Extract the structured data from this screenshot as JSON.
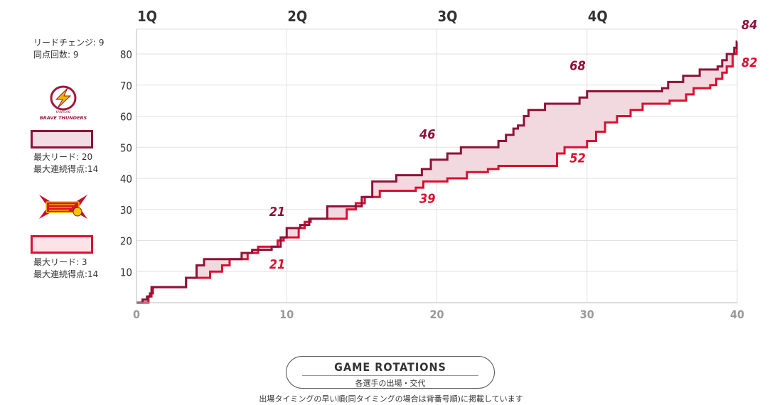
{
  "chart_data": {
    "type": "line",
    "title": "",
    "xlabel": "",
    "ylabel": "",
    "xlim": [
      0,
      40
    ],
    "ylim": [
      0,
      88
    ],
    "x_ticks": [
      "0",
      "10",
      "20",
      "30",
      "40"
    ],
    "y_ticks": [
      "10",
      "20",
      "30",
      "40",
      "50",
      "60",
      "70",
      "80"
    ],
    "quarters": [
      {
        "label": "1Q",
        "x": 0
      },
      {
        "label": "2Q",
        "x": 10
      },
      {
        "label": "3Q",
        "x": 20
      },
      {
        "label": "4Q",
        "x": 30
      }
    ],
    "grid": true,
    "series": [
      {
        "team": "thunders",
        "color": "#8e1239",
        "quarter_scores": [
          "21",
          "46",
          "68",
          "84"
        ],
        "steps": [
          [
            0,
            0
          ],
          [
            0.4,
            1
          ],
          [
            0.7,
            2
          ],
          [
            0.9,
            3
          ],
          [
            1.0,
            5
          ],
          [
            3.3,
            8
          ],
          [
            4.0,
            12
          ],
          [
            4.5,
            14
          ],
          [
            7.0,
            16
          ],
          [
            7.7,
            17
          ],
          [
            9.0,
            18
          ],
          [
            9.6,
            21
          ],
          [
            10.0,
            24
          ],
          [
            10.9,
            25
          ],
          [
            11.5,
            27
          ],
          [
            12.7,
            31
          ],
          [
            15.0,
            34
          ],
          [
            15.7,
            39
          ],
          [
            17.3,
            41
          ],
          [
            19.0,
            43
          ],
          [
            19.6,
            46
          ],
          [
            20.7,
            48
          ],
          [
            21.6,
            50
          ],
          [
            24.1,
            52
          ],
          [
            24.6,
            54
          ],
          [
            25.1,
            56
          ],
          [
            25.4,
            57
          ],
          [
            25.8,
            60
          ],
          [
            26.1,
            62
          ],
          [
            27.2,
            64
          ],
          [
            29.5,
            66
          ],
          [
            30.0,
            68
          ],
          [
            35.0,
            69
          ],
          [
            35.4,
            71
          ],
          [
            36.4,
            73
          ],
          [
            37.5,
            75
          ],
          [
            38.7,
            76
          ],
          [
            39.0,
            78
          ],
          [
            39.3,
            80
          ],
          [
            39.8,
            82
          ],
          [
            39.96,
            84
          ]
        ]
      },
      {
        "team": "brex",
        "color": "#d9102f",
        "quarter_scores": [
          "21",
          "39",
          "52",
          "82"
        ],
        "steps": [
          [
            0,
            0
          ],
          [
            0.8,
            2
          ],
          [
            1.0,
            3
          ],
          [
            1.1,
            5
          ],
          [
            3.3,
            8
          ],
          [
            4.9,
            10
          ],
          [
            5.7,
            12
          ],
          [
            6.2,
            14
          ],
          [
            7.4,
            16
          ],
          [
            8.1,
            18
          ],
          [
            9.4,
            20
          ],
          [
            9.8,
            21
          ],
          [
            10.8,
            24
          ],
          [
            11.2,
            26
          ],
          [
            11.6,
            27
          ],
          [
            14.0,
            30
          ],
          [
            14.6,
            32
          ],
          [
            15.2,
            34
          ],
          [
            16.2,
            36
          ],
          [
            18.6,
            37
          ],
          [
            19.1,
            39
          ],
          [
            20.7,
            40
          ],
          [
            22.0,
            42
          ],
          [
            23.4,
            43
          ],
          [
            24.1,
            44
          ],
          [
            28.0,
            48
          ],
          [
            28.5,
            50
          ],
          [
            30.0,
            52
          ],
          [
            30.6,
            55
          ],
          [
            31.2,
            58
          ],
          [
            32.0,
            60
          ],
          [
            32.9,
            62
          ],
          [
            33.7,
            64
          ],
          [
            35.5,
            65
          ],
          [
            36.6,
            67
          ],
          [
            37.1,
            69
          ],
          [
            38.2,
            70
          ],
          [
            38.6,
            72
          ],
          [
            39.0,
            74
          ],
          [
            39.3,
            76
          ],
          [
            39.7,
            80
          ],
          [
            39.96,
            82
          ]
        ]
      }
    ]
  },
  "lead_changes_label": "リードチェンジ: 9",
  "ties_label": "同点回数: 9",
  "teams": [
    {
      "id": "thunders",
      "logo_text": "BRAVE THUNDERS",
      "logo_small": "KAWASAKI",
      "max_lead": "最大リード:  20",
      "max_run": "最大連続得点:14"
    },
    {
      "id": "brex",
      "max_lead": "最大リード:  3",
      "max_run": "最大連続得点:14"
    }
  ],
  "rotations_button": {
    "title": "GAME ROTATIONS",
    "subtitle": "各選手の出場・交代"
  },
  "rotations_note": "出場タイミングの早い順(同タイミングの場合は背番号順)に掲載しています"
}
